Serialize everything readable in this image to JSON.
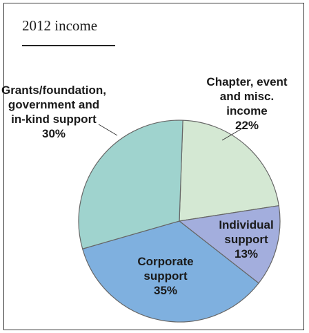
{
  "chart_data": {
    "type": "pie",
    "title": "2012 income",
    "slices": [
      {
        "label": [
          "Chapter, event",
          "and misc.",
          "income"
        ],
        "value": 22,
        "value_label": "22%",
        "color": "#d4e8d3"
      },
      {
        "label": [
          "Individual",
          "support"
        ],
        "value": 13,
        "value_label": "13%",
        "color": "#a3aedd"
      },
      {
        "label": [
          "Corporate",
          "support"
        ],
        "value": 35,
        "value_label": "35%",
        "color": "#7fb0df"
      },
      {
        "label": [
          "Grants/foundation,",
          "government and",
          "in-kind support"
        ],
        "value": 30,
        "value_label": "30%",
        "color": "#9fd3ce"
      }
    ]
  }
}
